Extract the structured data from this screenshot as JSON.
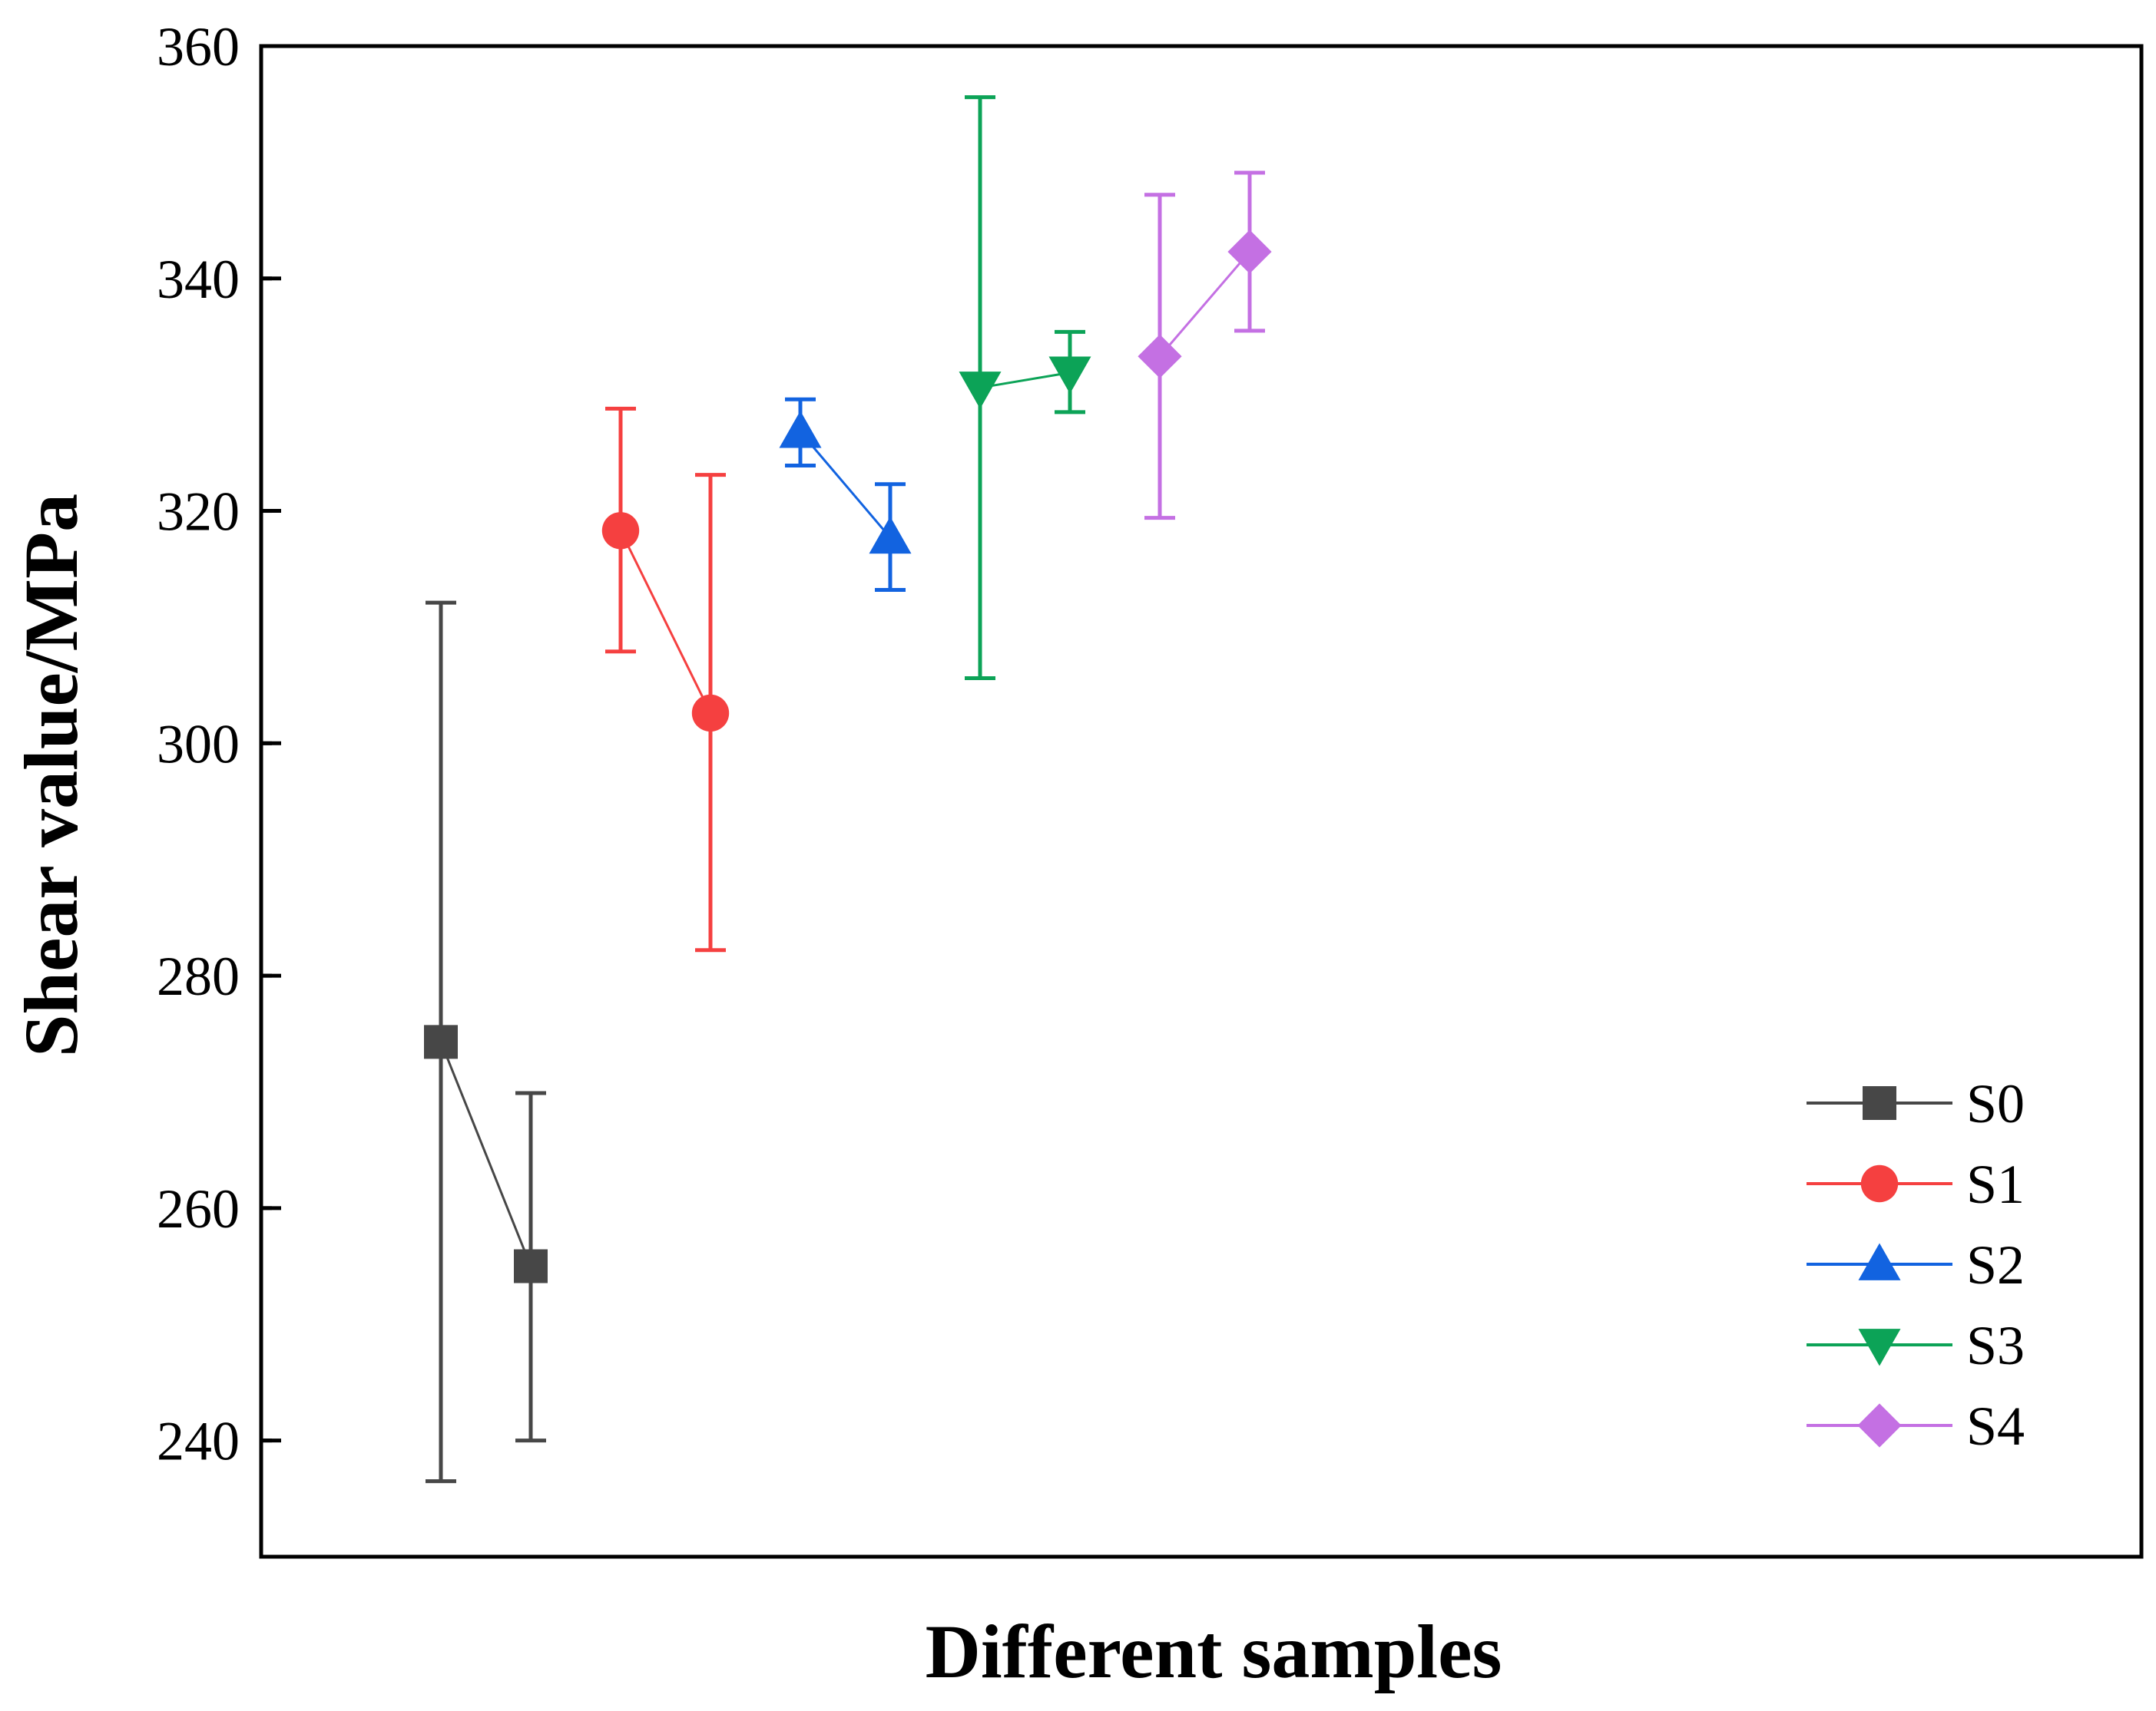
{
  "chart_data": {
    "type": "scatter",
    "xlabel": "Different samples",
    "ylabel": "Shear value/MPa",
    "ylim": [
      230,
      360
    ],
    "yticks": [
      240,
      260,
      280,
      300,
      320,
      340,
      360
    ],
    "grid": false,
    "legend_position": "bottom-right",
    "series": [
      {
        "name": "S0",
        "color": "#474747",
        "marker": "square",
        "points": [
          {
            "x": 1,
            "y": 274.3,
            "err_low": 236.5,
            "err_high": 312.1
          },
          {
            "x": 2,
            "y": 255.0,
            "err_low": 240.0,
            "err_high": 269.9
          }
        ]
      },
      {
        "name": "S1",
        "color": "#f54040",
        "marker": "circle",
        "points": [
          {
            "x": 3,
            "y": 318.3,
            "err_low": 307.9,
            "err_high": 328.8
          },
          {
            "x": 4,
            "y": 302.6,
            "err_low": 282.2,
            "err_high": 323.1
          }
        ]
      },
      {
        "name": "S2",
        "color": "#1263e0",
        "marker": "triangle-up",
        "points": [
          {
            "x": 5,
            "y": 326.8,
            "err_low": 323.9,
            "err_high": 329.6
          },
          {
            "x": 6,
            "y": 317.7,
            "err_low": 313.2,
            "err_high": 322.3
          }
        ]
      },
      {
        "name": "S3",
        "color": "#0ca357",
        "marker": "triangle-down",
        "points": [
          {
            "x": 7,
            "y": 330.6,
            "err_low": 305.6,
            "err_high": 355.6
          },
          {
            "x": 8,
            "y": 331.9,
            "err_low": 328.5,
            "err_high": 335.4
          }
        ]
      },
      {
        "name": "S4",
        "color": "#c470e3",
        "marker": "diamond",
        "points": [
          {
            "x": 9,
            "y": 333.3,
            "err_low": 319.4,
            "err_high": 347.2
          },
          {
            "x": 10,
            "y": 342.3,
            "err_low": 335.5,
            "err_high": 349.1
          }
        ]
      }
    ]
  }
}
